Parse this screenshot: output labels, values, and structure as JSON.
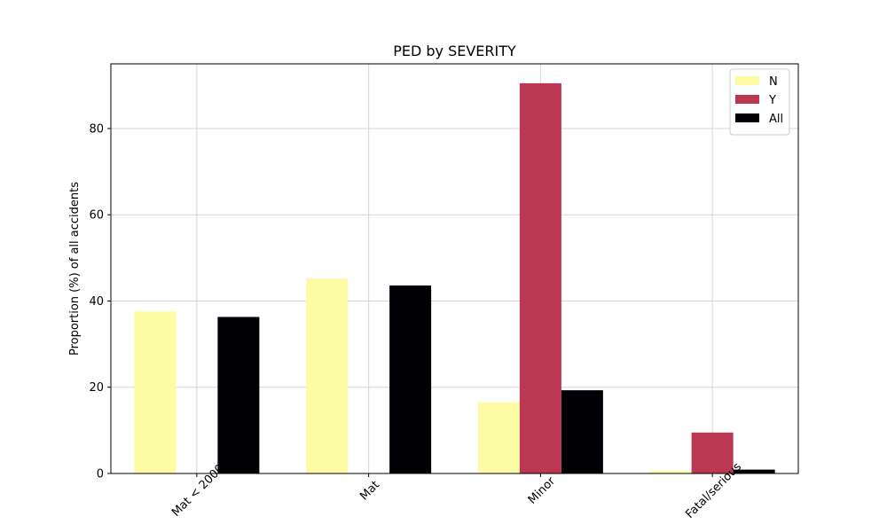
{
  "chart_data": {
    "type": "bar",
    "title": "PED by SEVERITY",
    "xlabel": "",
    "ylabel": "Proportion (%) of all accidents",
    "categories": [
      "Mat < 2000",
      "Mat",
      "Minor",
      "Fatal/serious"
    ],
    "series": [
      {
        "name": "N",
        "color": "#fcfca4",
        "values": [
          37.6,
          45.2,
          16.5,
          0.6
        ]
      },
      {
        "name": "Y",
        "color": "#bb3754",
        "values": [
          0.0,
          0.0,
          90.5,
          9.5
        ]
      },
      {
        "name": "All",
        "color": "#000004",
        "values": [
          36.3,
          43.6,
          19.3,
          0.9
        ]
      }
    ],
    "ylim": [
      0,
      95
    ],
    "yticks": [
      0,
      20,
      40,
      60,
      80
    ],
    "grid": true,
    "legend": "top-right",
    "xtick_rotation": 45
  }
}
